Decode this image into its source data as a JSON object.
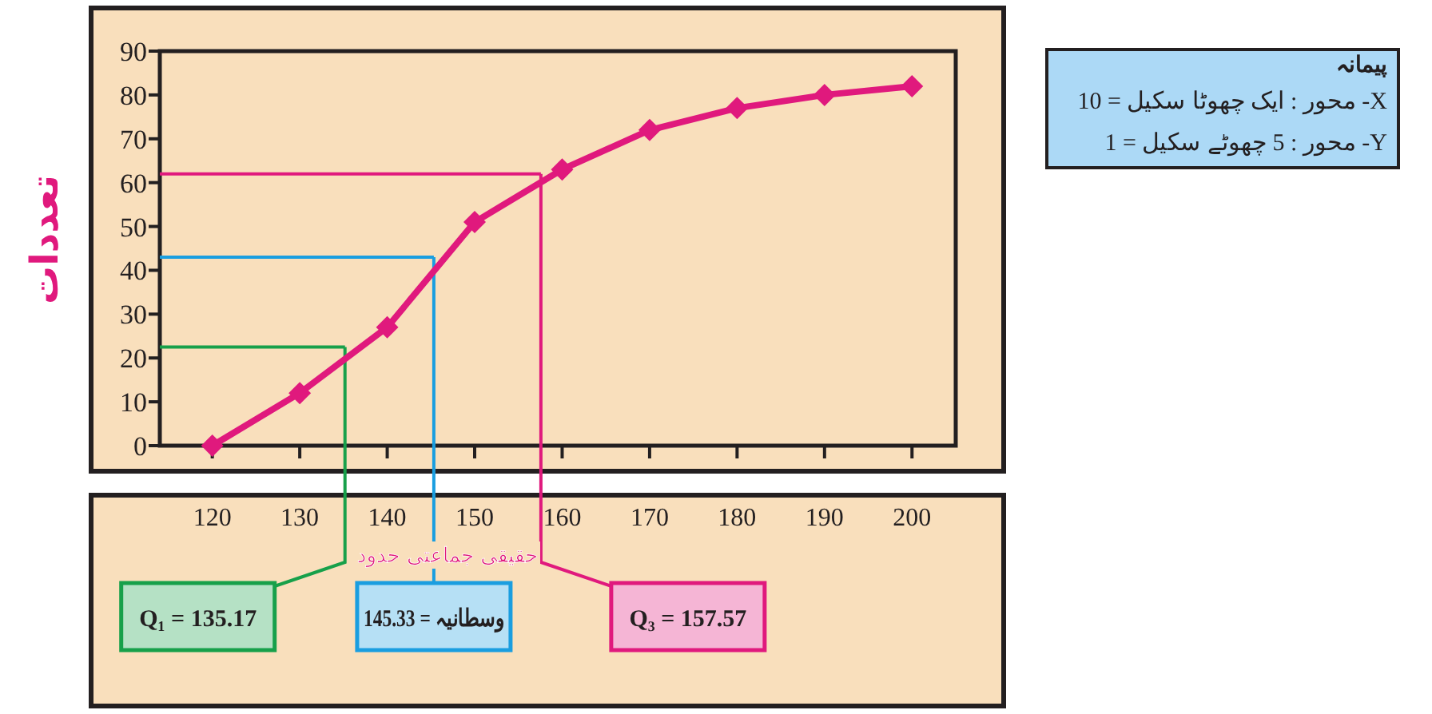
{
  "chart_data": {
    "type": "line",
    "xlabel": "حقیقی جماعتی حدود",
    "ylabel": "تعددات",
    "x": [
      120,
      130,
      140,
      150,
      160,
      170,
      180,
      190,
      200
    ],
    "series": [
      {
        "color": "#e0197d",
        "values": [
          0,
          12,
          27,
          51,
          63,
          72,
          77,
          80,
          82
        ]
      }
    ],
    "marker": "diamond",
    "line_style": "solid",
    "grid": false,
    "xlim": [
      114,
      205
    ],
    "ylim": [
      0,
      90
    ],
    "xticks": [
      120,
      130,
      140,
      150,
      160,
      170,
      180,
      190,
      200
    ],
    "yticks": [
      0,
      10,
      20,
      30,
      40,
      50,
      60,
      70,
      80,
      90
    ],
    "ref_lines": [
      {
        "axis": "y",
        "value": 22.5,
        "color": "#17a04a"
      },
      {
        "axis": "y",
        "value": 43,
        "color": "#1a9ee0"
      },
      {
        "axis": "y",
        "value": 62,
        "color": "#e0197d"
      },
      {
        "axis": "x",
        "value": 135.17,
        "label": "Q₁ = 135.17",
        "color": "#17a04a"
      },
      {
        "axis": "x",
        "value": 145.33,
        "label": "وسطانیہ = 145.33",
        "color": "#1a9ee0"
      },
      {
        "axis": "x",
        "value": 157.57,
        "label": "Q₃ = 157.57",
        "color": "#e0197d"
      }
    ],
    "annotations": [
      "پیمانہ",
      "X- محور : ایک چھوٹا سکیل = 10",
      "Y- محور : 5 چھوٹے سکیل = 1"
    ]
  }
}
